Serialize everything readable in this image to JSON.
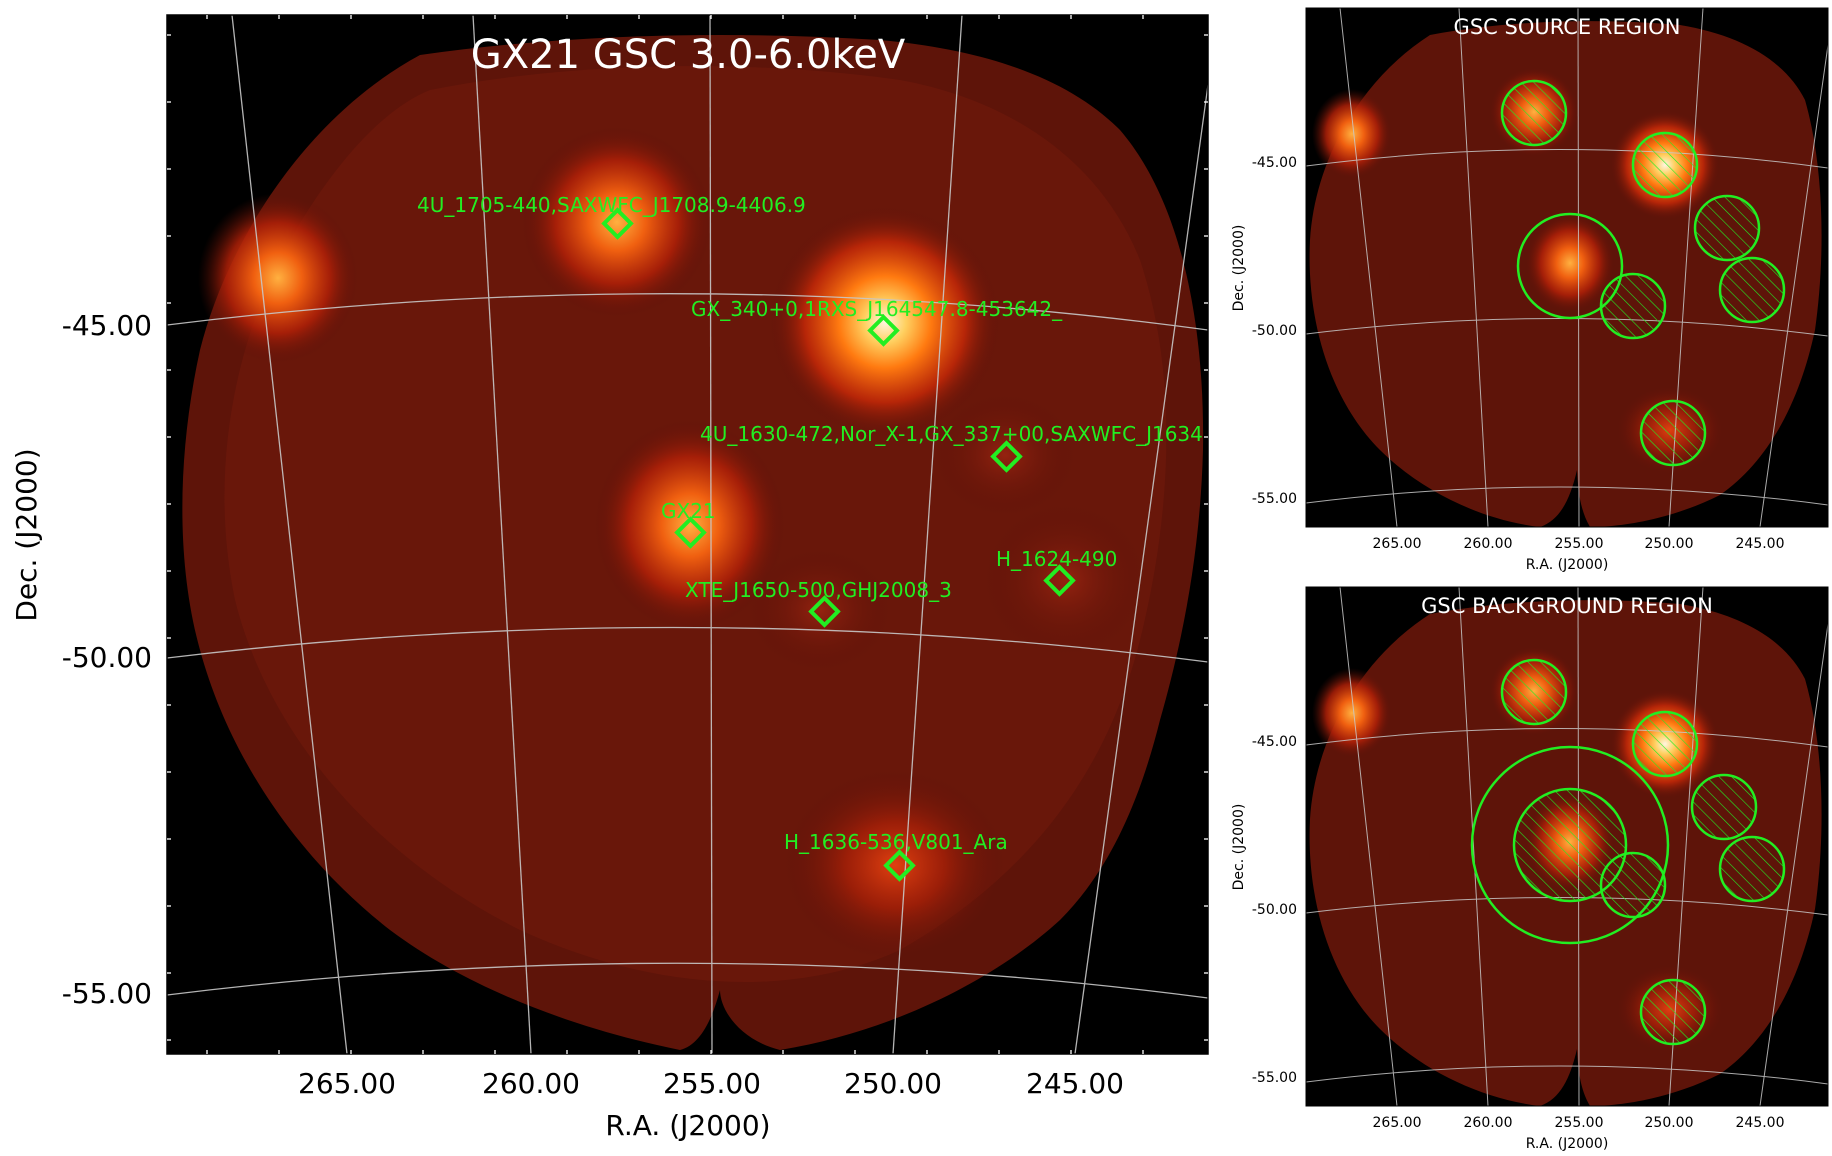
{
  "figure": {
    "main_panel": {
      "title": "GX21 GSC 3.0-6.0keV",
      "xlabel": "R.A. (J2000)",
      "ylabel": "Dec. (J2000)",
      "ra_ticks": [
        "265.00",
        "260.00",
        "255.00",
        "250.00",
        "245.00"
      ],
      "dec_ticks": [
        "-45.00",
        "-50.00",
        "-55.00"
      ],
      "sources": [
        {
          "label": "4U_1705-440,SAXWFC_J1708.9-4406.9"
        },
        {
          "label": "GX_340+0,1RXS_J164547.8-453642_"
        },
        {
          "label": "4U_1630-472,Nor_X-1,GX_337+00,SAXWFC_J1634"
        },
        {
          "label": "GX21"
        },
        {
          "label": "H_1624-490"
        },
        {
          "label": "XTE_J1650-500,GHJ2008_3"
        },
        {
          "label": "H_1636-536,V801_Ara"
        }
      ]
    },
    "source_panel": {
      "title": "GSC SOURCE REGION",
      "xlabel": "R.A. (J2000)",
      "ylabel": "Dec. (J2000)",
      "ra_ticks": [
        "265.00",
        "260.00",
        "255.00",
        "250.00",
        "245.00"
      ],
      "dec_ticks": [
        "-45.00",
        "-50.00",
        "-55.00"
      ]
    },
    "background_panel": {
      "title": "GSC BACKGROUND REGION",
      "xlabel": "R.A. (J2000)",
      "ylabel": "Dec. (J2000)",
      "ra_ticks": [
        "265.00",
        "260.00",
        "255.00",
        "250.00",
        "245.00"
      ],
      "dec_ticks": [
        "-45.00",
        "-50.00",
        "-55.00"
      ]
    }
  },
  "colors": {
    "marker": "#22ee22",
    "grid": "#c8c8c8",
    "background": "#000000",
    "title_main": "#ffffff"
  }
}
